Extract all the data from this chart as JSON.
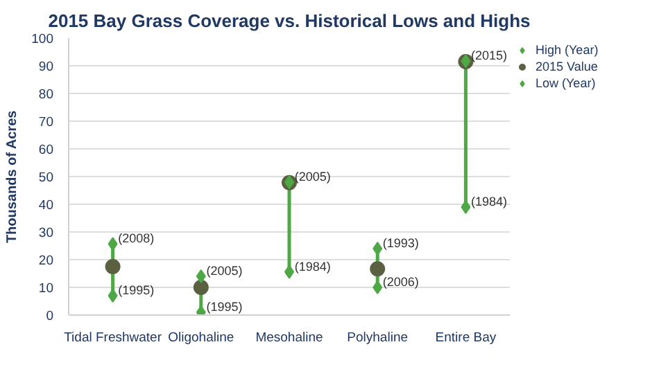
{
  "chart_data": {
    "type": "scatter",
    "title": "2015 Bay Grass Coverage vs. Historical Lows and Highs",
    "ylabel": "Thousands of Acres",
    "categories": [
      "Tidal Freshwater",
      "Oligohaline",
      "Mesohaline",
      "Polyhaline",
      "Entire Bay"
    ],
    "series": [
      {
        "name": "High (Year)",
        "color": "#4ea845",
        "marker": "diamond",
        "values": [
          25.7,
          14,
          48,
          24,
          91.7
        ]
      },
      {
        "name": "2015 Value",
        "color": "#5b6140",
        "marker": "circle",
        "values": [
          17.5,
          10,
          47.8,
          16.7,
          91.5
        ]
      },
      {
        "name": "Low (Year)",
        "color": "#4ea845",
        "marker": "diamond",
        "values": [
          7,
          1,
          15.6,
          10,
          39
        ]
      }
    ],
    "ylim": [
      0,
      100
    ],
    "yticks": [
      0,
      10,
      20,
      30,
      40,
      50,
      60,
      70,
      80,
      90,
      100
    ],
    "grid": "y",
    "legend": "top right",
    "annotations": [
      {
        "text": "(2008)",
        "x": "Tidal Freshwater",
        "y": 25.7
      },
      {
        "text": "(1995)",
        "x": "Tidal Freshwater",
        "y": 7
      },
      {
        "text": "(2005)",
        "x": "Oligohaline",
        "y": 14
      },
      {
        "text": "(1995)",
        "x": "Oligohaline",
        "y": 1
      },
      {
        "text": "(2005)",
        "x": "Mesohaline",
        "y": 48
      },
      {
        "text": "(1984)",
        "x": "Mesohaline",
        "y": 15.6
      },
      {
        "text": "(1993)",
        "x": "Polyhaline",
        "y": 24
      },
      {
        "text": "(2006)",
        "x": "Polyhaline",
        "y": 10
      },
      {
        "text": "(2015)",
        "x": "Entire Bay",
        "y": 91.7
      },
      {
        "text": "(1984)",
        "x": "Entire Bay",
        "y": 39
      }
    ]
  }
}
